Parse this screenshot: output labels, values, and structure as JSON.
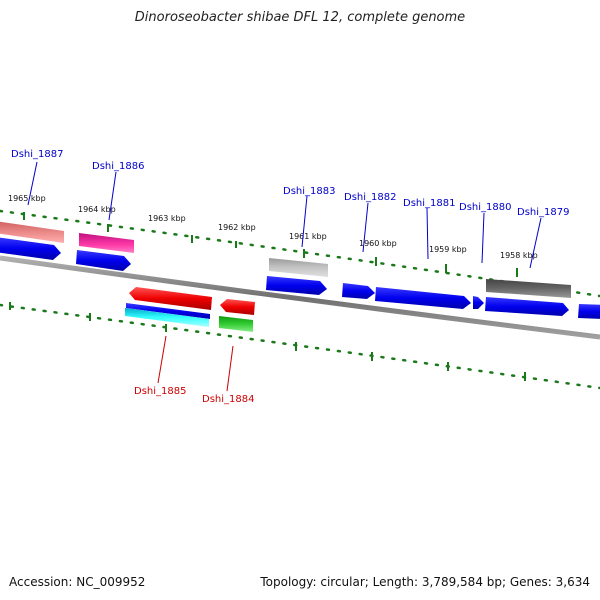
{
  "header": {
    "title": "Dinoroseobacter shibae DFL 12, complete genome"
  },
  "footer": {
    "accession": "Accession: NC_009952",
    "summary": "Topology: circular; Length: 3,789,584 bp; Genes: 3,634"
  },
  "colors": {
    "forward_label": "#0000cc",
    "reverse_label": "#cc0000",
    "tick": "#1a7a1a",
    "backbone": "#808080"
  },
  "map": {
    "kbp_labels": [
      "1965 kbp",
      "1964 kbp",
      "1963 kbp",
      "1962 kbp",
      "1961 kbp",
      "1960 kbp",
      "1959 kbp",
      "1958 kbp"
    ],
    "forward_genes": [
      "Dshi_1887",
      "Dshi_1886",
      "Dshi_1883",
      "Dshi_1882",
      "Dshi_1881",
      "Dshi_1880",
      "Dshi_1879"
    ],
    "reverse_genes": [
      "Dshi_1885",
      "Dshi_1884"
    ]
  }
}
